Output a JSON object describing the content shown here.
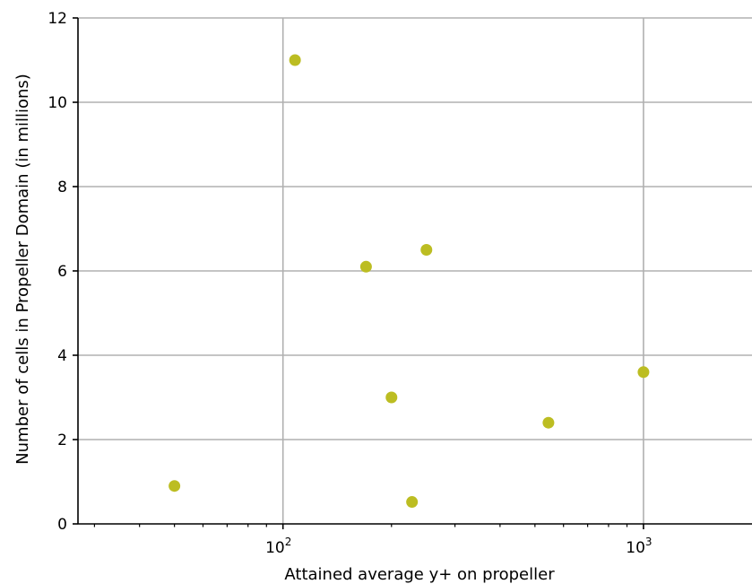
{
  "chart_data": {
    "type": "scatter",
    "title": "",
    "xlabel": "Attained average y+ on propeller",
    "ylabel": "Number of cells in Propeller Domain (in millions)",
    "xscale": "log",
    "xlim": [
      27,
      2000
    ],
    "ylim": [
      0,
      12
    ],
    "grid": true,
    "color": "#bcbd22",
    "x_ticks": [
      {
        "value": 100,
        "base": "10",
        "exp": "2"
      },
      {
        "value": 1000,
        "base": "10",
        "exp": "3"
      }
    ],
    "y_ticks": [
      0,
      2,
      4,
      6,
      8,
      10,
      12
    ],
    "points": [
      {
        "x": 50,
        "y": 0.9
      },
      {
        "x": 108,
        "y": 11.0
      },
      {
        "x": 170,
        "y": 6.1
      },
      {
        "x": 200,
        "y": 3.0
      },
      {
        "x": 228,
        "y": 0.52
      },
      {
        "x": 250,
        "y": 6.5
      },
      {
        "x": 545,
        "y": 2.4
      },
      {
        "x": 1000,
        "y": 3.6
      }
    ]
  }
}
